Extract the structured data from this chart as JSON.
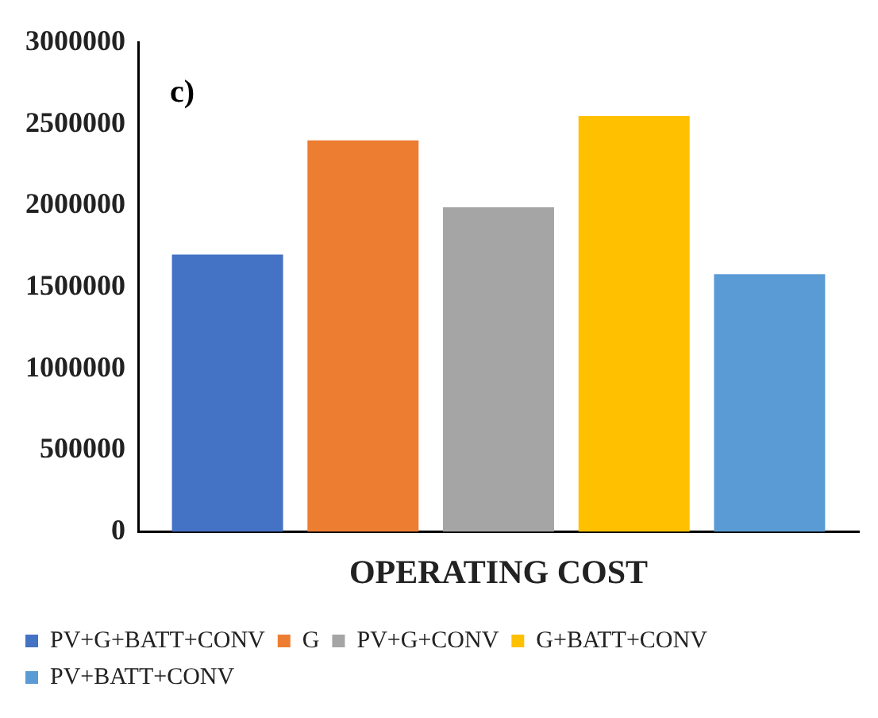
{
  "chart_data": {
    "type": "bar",
    "categories": [
      "OPERATING COST"
    ],
    "series": [
      {
        "name": "PV+G+BATT+CONV",
        "color": "#4472c4",
        "values": [
          1700000
        ]
      },
      {
        "name": "G",
        "color": "#ed7d31",
        "values": [
          2400000
        ]
      },
      {
        "name": "PV+G+CONV",
        "color": "#a5a5a5",
        "values": [
          1990000
        ]
      },
      {
        "name": "G+BATT+CONV",
        "color": "#ffc000",
        "values": [
          2550000
        ]
      },
      {
        "name": "PV+BATT+CONV",
        "color": "#5b9bd5",
        "values": [
          1580000
        ]
      }
    ],
    "ylim": [
      0,
      3000000
    ],
    "yticks": [
      0,
      500000,
      1000000,
      1500000,
      2000000,
      2500000,
      3000000
    ],
    "grid": false,
    "legend": "bottom",
    "annotations": [
      "c)"
    ]
  }
}
